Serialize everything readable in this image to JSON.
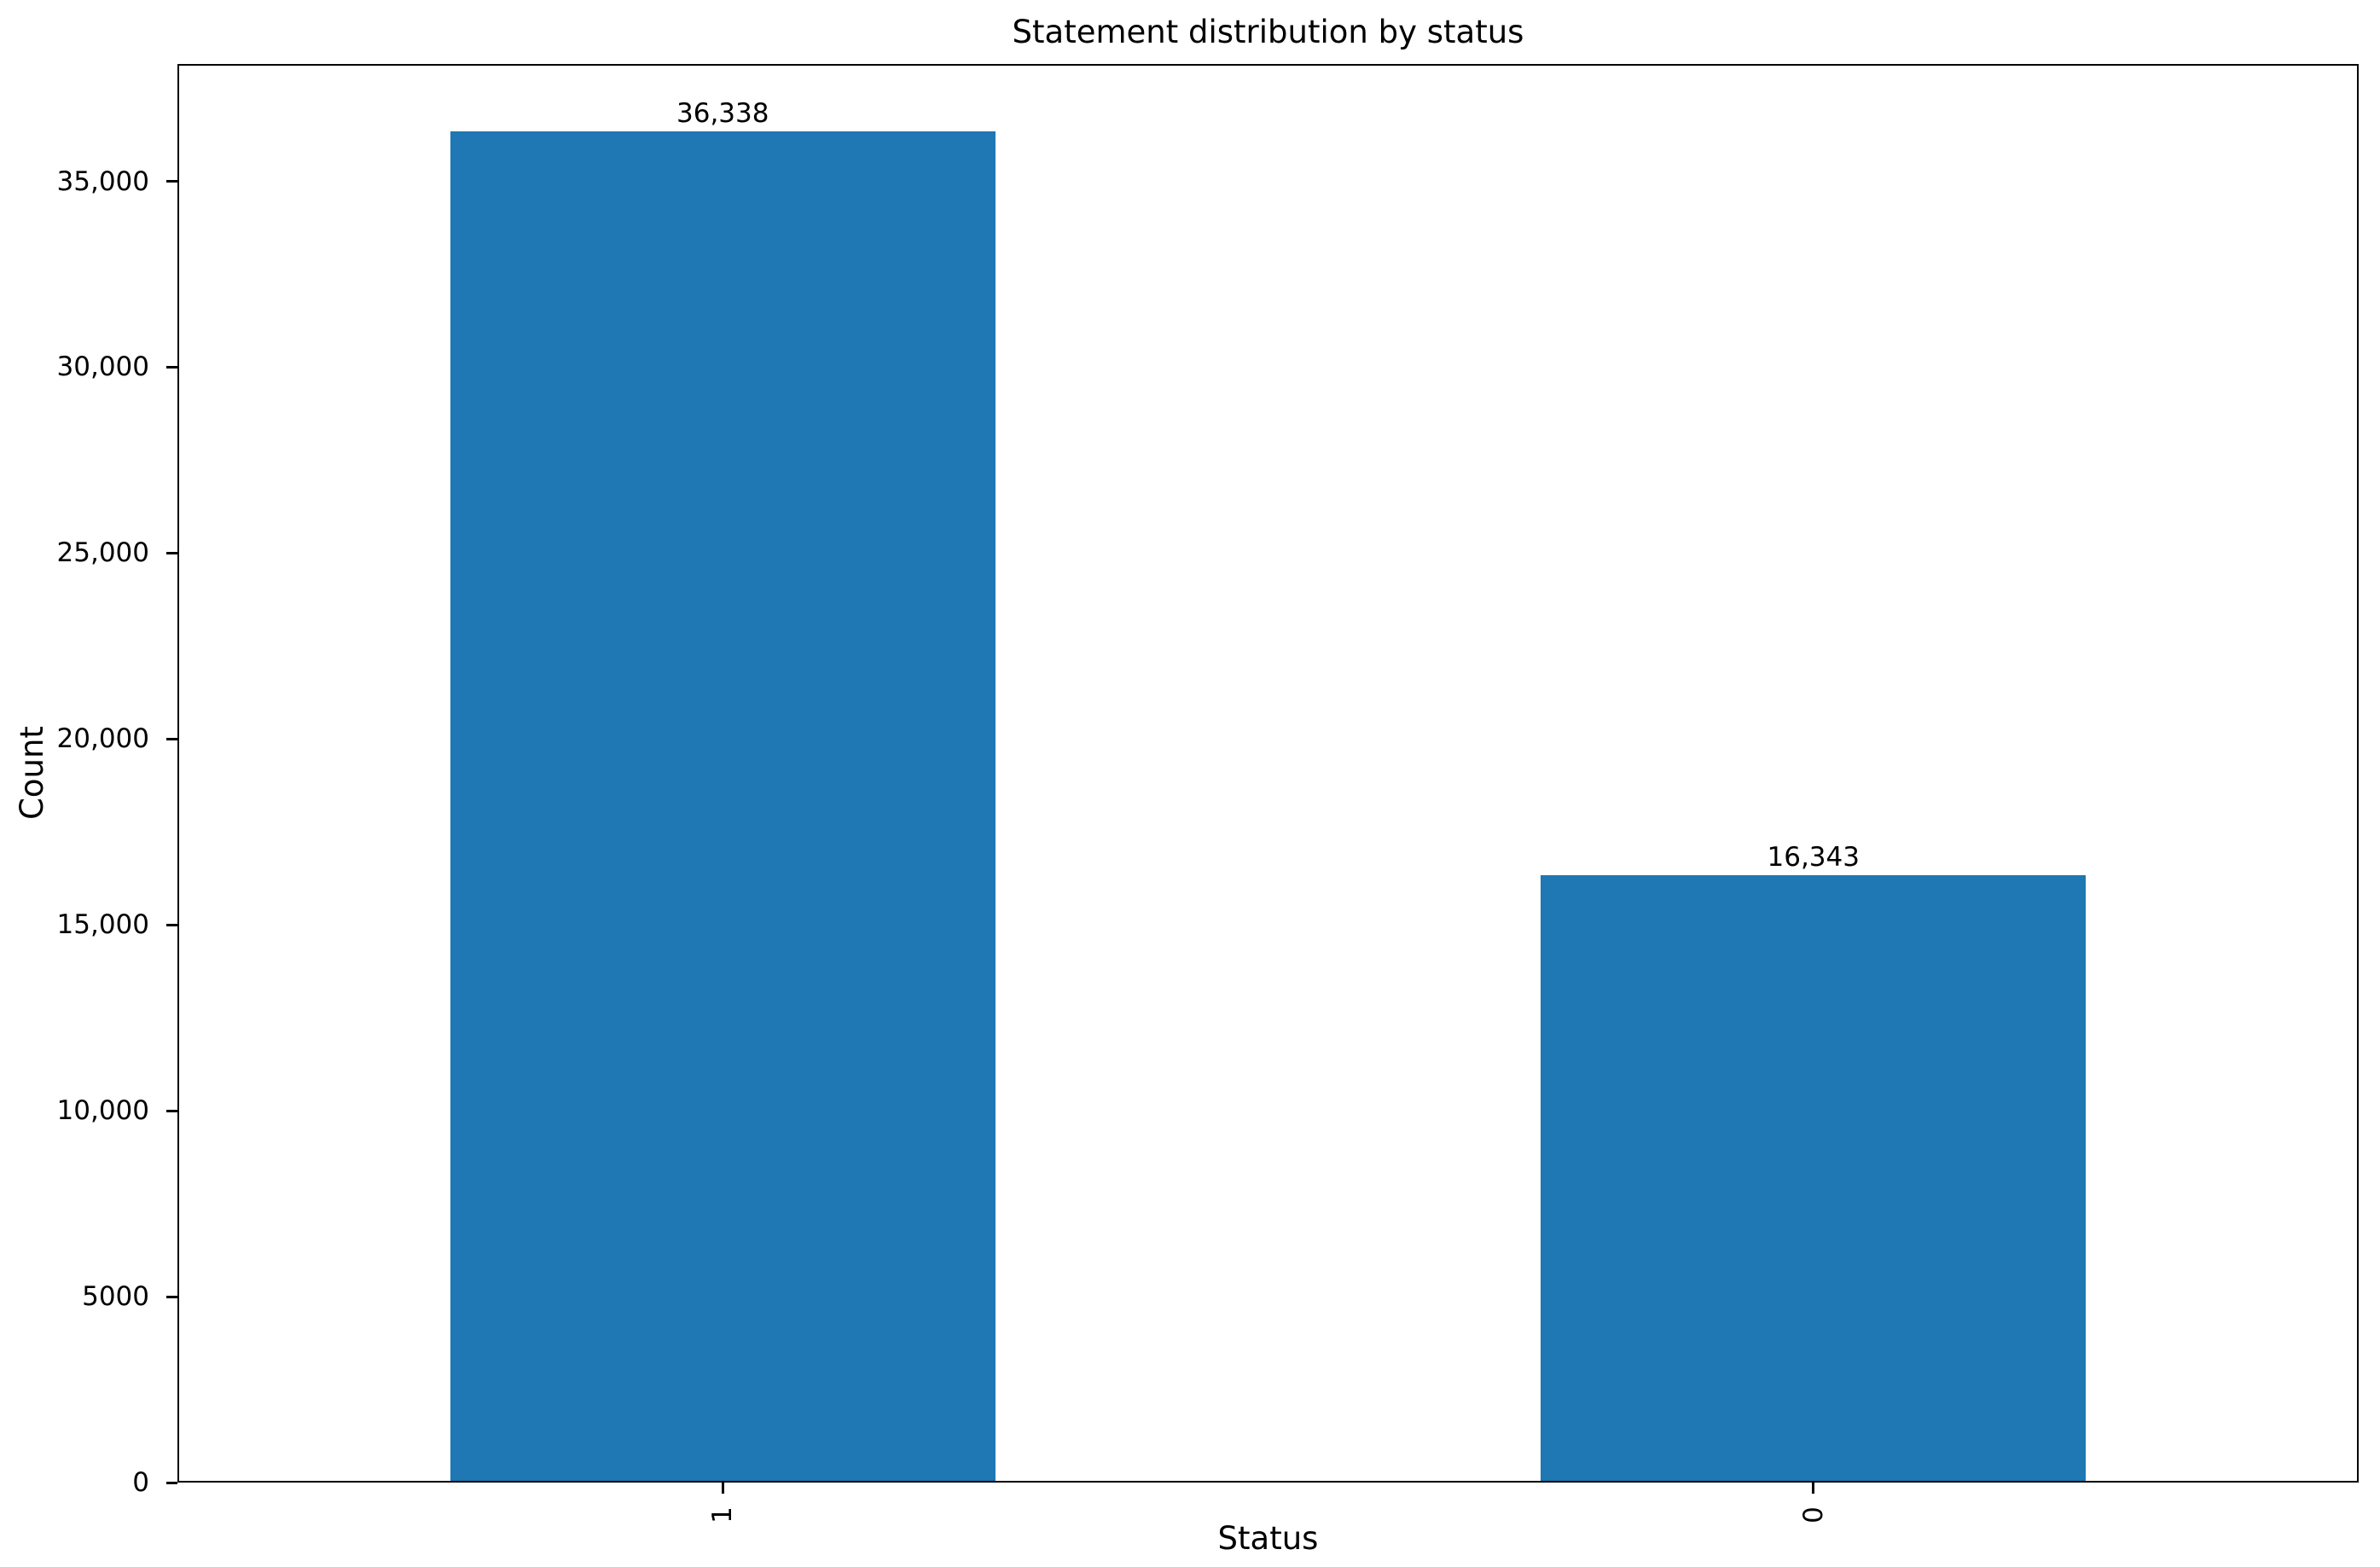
{
  "chart_data": {
    "type": "bar",
    "title": "Statement distribution by status",
    "xlabel": "Status",
    "ylabel": "Count",
    "categories": [
      "1",
      "0"
    ],
    "values": [
      36338,
      16343
    ],
    "bar_value_labels": [
      "36,338",
      "16,343"
    ],
    "bar_color": "#1f77b4",
    "text_color": "#000000",
    "ylim": [
      0,
      38155
    ],
    "ytick_values": [
      0,
      5000,
      10000,
      15000,
      20000,
      25000,
      30000,
      35000
    ],
    "ytick_labels": [
      "0",
      "5000",
      "10,000",
      "15,000",
      "20,000",
      "25,000",
      "30,000",
      "35,000"
    ],
    "xtick_rotation_deg": 90,
    "bar_width_fraction": 0.5,
    "grid": false,
    "legend_position": "none",
    "spines": "box"
  }
}
